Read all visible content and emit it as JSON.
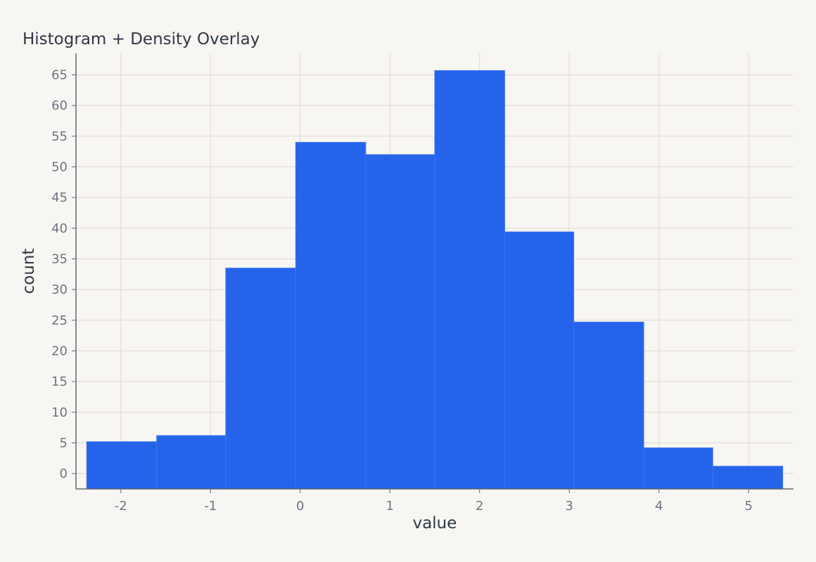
{
  "chart_data": {
    "type": "bar",
    "title": "Histogram + Density Overlay",
    "xlabel": "value",
    "ylabel": "count",
    "xlim": [
      -2.5,
      5.5
    ],
    "ylim": [
      -2.5,
      68.5
    ],
    "xticks": [
      -2,
      -1,
      0,
      1,
      2,
      3,
      4,
      5
    ],
    "yticks": [
      0,
      5,
      10,
      15,
      20,
      25,
      30,
      35,
      40,
      45,
      50,
      55,
      60,
      65
    ],
    "grid": true,
    "bins": [
      {
        "x0": -2.38,
        "x1": -1.6,
        "count": 5.2
      },
      {
        "x0": -1.6,
        "x1": -0.83,
        "count": 6.2
      },
      {
        "x0": -0.83,
        "x1": -0.05,
        "count": 33.5
      },
      {
        "x0": -0.05,
        "x1": 0.73,
        "count": 54
      },
      {
        "x0": 0.73,
        "x1": 1.5,
        "count": 52
      },
      {
        "x0": 1.5,
        "x1": 2.28,
        "count": 65.7
      },
      {
        "x0": 2.28,
        "x1": 3.05,
        "count": 39.4
      },
      {
        "x0": 3.05,
        "x1": 3.83,
        "count": 24.7
      },
      {
        "x0": 3.83,
        "x1": 4.6,
        "count": 4.2
      },
      {
        "x0": 4.6,
        "x1": 5.38,
        "count": 1.2
      }
    ],
    "colors": {
      "bar": "#2563eb",
      "bar_edge": "#3a74ee",
      "grid": "#ddd9d3",
      "axis": "#5f6675",
      "background": "#f8f6f2"
    }
  }
}
